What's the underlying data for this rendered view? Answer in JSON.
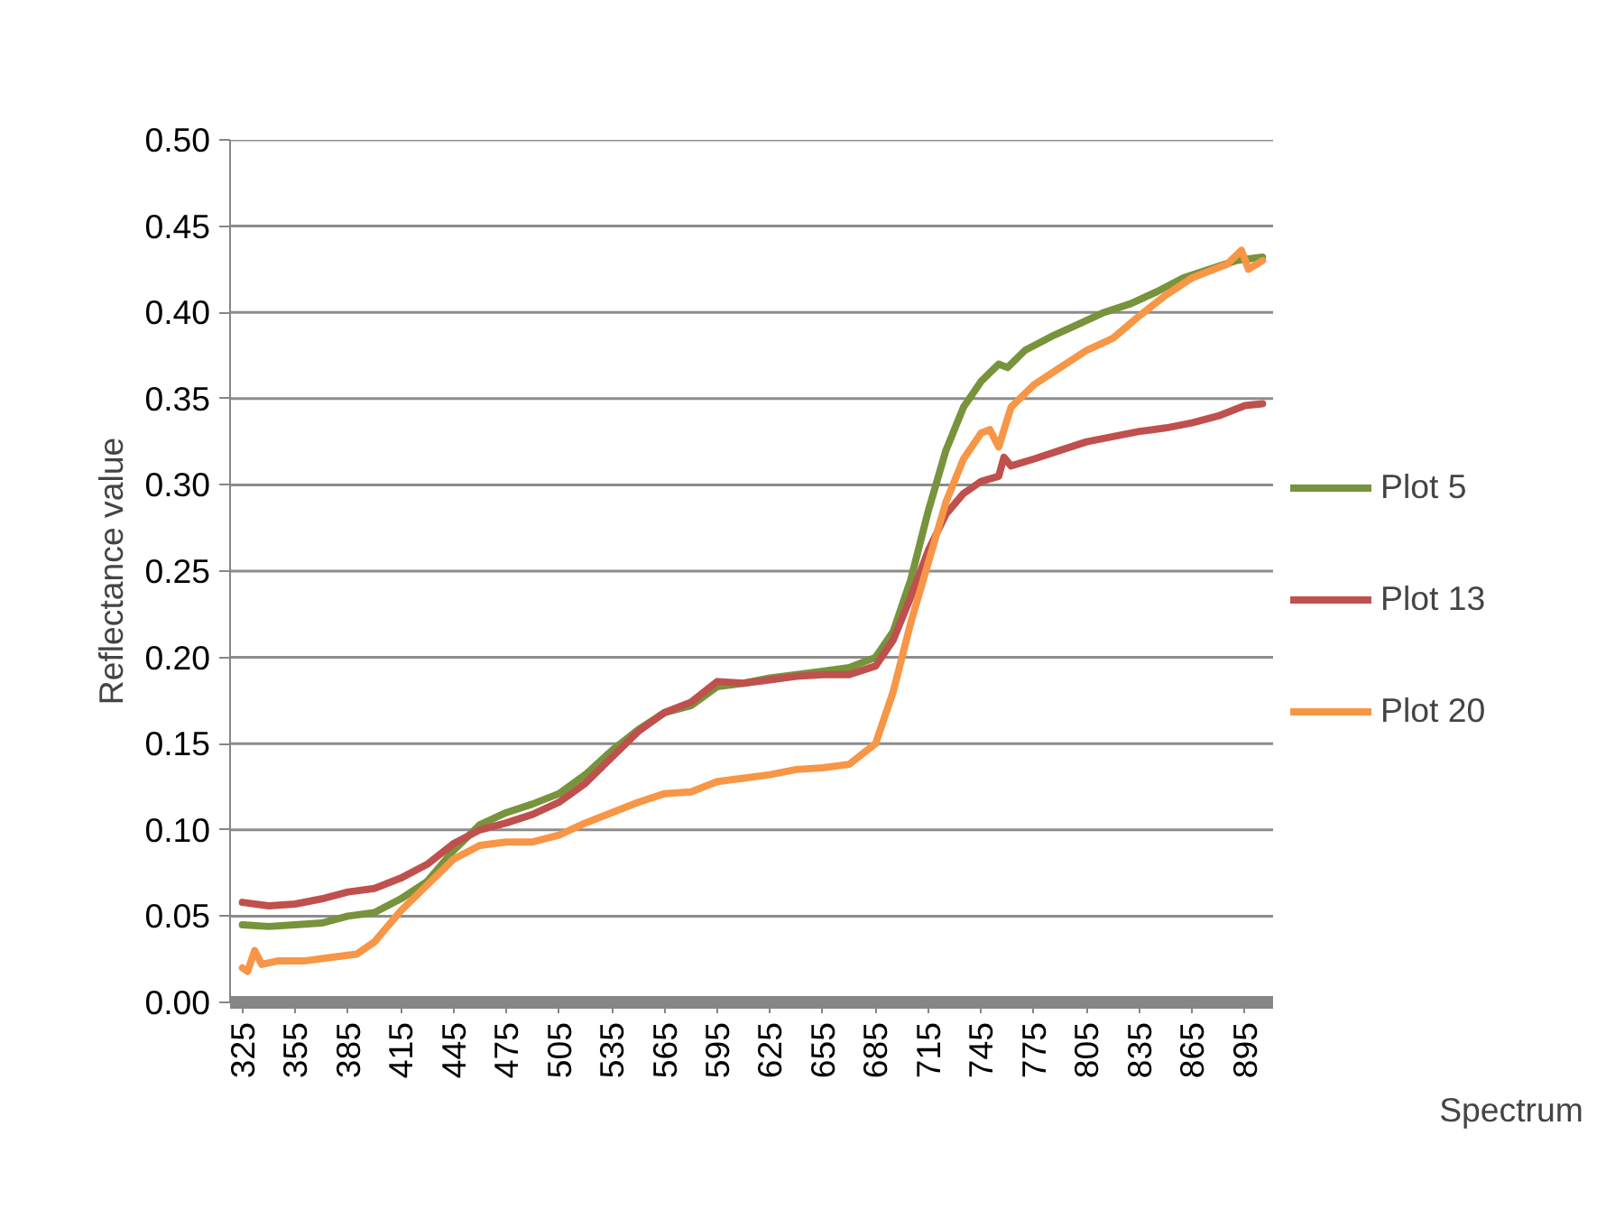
{
  "chart_data": {
    "type": "line",
    "xlabel": "Spectrum",
    "ylabel": "Reflectance value",
    "xlim": [
      318,
      911
    ],
    "xticks": [
      325,
      355,
      385,
      415,
      445,
      475,
      505,
      535,
      565,
      595,
      625,
      655,
      685,
      715,
      745,
      775,
      805,
      835,
      865,
      895
    ],
    "ylim": [
      0,
      0.5
    ],
    "yticks": [
      {
        "value": 0,
        "label": "0.00"
      },
      {
        "value": 0.05,
        "label": "0.05"
      },
      {
        "value": 0.1,
        "label": "0.10"
      },
      {
        "value": 0.15,
        "label": "0.15"
      },
      {
        "value": 0.2,
        "label": "0.20"
      },
      {
        "value": 0.25,
        "label": "0.25"
      },
      {
        "value": 0.3,
        "label": "0.30"
      },
      {
        "value": 0.35,
        "label": "0.35"
      },
      {
        "value": 0.4,
        "label": "0.40"
      },
      {
        "value": 0.45,
        "label": "0.45"
      },
      {
        "value": 0.5,
        "label": "0.50"
      }
    ],
    "grid": "y",
    "legend": "right",
    "marker": "none",
    "line_style": "solid",
    "series": [
      {
        "name": "Plot 5",
        "color": "#77933c",
        "x": [
          325,
          340,
          355,
          370,
          385,
          400,
          415,
          430,
          445,
          460,
          475,
          490,
          505,
          520,
          535,
          550,
          565,
          580,
          595,
          610,
          625,
          640,
          655,
          670,
          685,
          695,
          705,
          715,
          725,
          735,
          745,
          755,
          760,
          770,
          785,
          800,
          815,
          830,
          845,
          860,
          875,
          890,
          905
        ],
        "values": [
          0.045,
          0.044,
          0.045,
          0.046,
          0.05,
          0.052,
          0.06,
          0.07,
          0.088,
          0.103,
          0.11,
          0.115,
          0.121,
          0.132,
          0.146,
          0.158,
          0.168,
          0.172,
          0.183,
          0.185,
          0.188,
          0.19,
          0.192,
          0.194,
          0.2,
          0.215,
          0.245,
          0.285,
          0.32,
          0.345,
          0.36,
          0.37,
          0.368,
          0.378,
          0.386,
          0.393,
          0.4,
          0.405,
          0.412,
          0.42,
          0.425,
          0.43,
          0.432
        ]
      },
      {
        "name": "Plot 13",
        "color": "#c0504d",
        "x": [
          325,
          340,
          355,
          370,
          385,
          400,
          415,
          430,
          445,
          460,
          475,
          490,
          505,
          520,
          535,
          550,
          565,
          580,
          595,
          610,
          625,
          640,
          655,
          670,
          685,
          695,
          705,
          715,
          725,
          735,
          745,
          755,
          758,
          762,
          775,
          790,
          805,
          820,
          835,
          850,
          865,
          880,
          895,
          905
        ],
        "values": [
          0.058,
          0.056,
          0.057,
          0.06,
          0.064,
          0.066,
          0.072,
          0.08,
          0.092,
          0.1,
          0.104,
          0.109,
          0.116,
          0.127,
          0.142,
          0.157,
          0.168,
          0.174,
          0.186,
          0.185,
          0.187,
          0.189,
          0.19,
          0.19,
          0.195,
          0.21,
          0.235,
          0.262,
          0.283,
          0.295,
          0.302,
          0.305,
          0.316,
          0.311,
          0.315,
          0.32,
          0.325,
          0.328,
          0.331,
          0.333,
          0.336,
          0.34,
          0.346,
          0.347
        ]
      },
      {
        "name": "Plot 20",
        "color": "#f79646",
        "x": [
          325,
          328,
          332,
          336,
          345,
          360,
          375,
          390,
          400,
          415,
          430,
          445,
          460,
          475,
          490,
          505,
          520,
          535,
          550,
          565,
          580,
          595,
          610,
          625,
          640,
          655,
          670,
          685,
          695,
          705,
          715,
          725,
          735,
          745,
          750,
          755,
          762,
          775,
          790,
          805,
          820,
          835,
          850,
          865,
          875,
          885,
          893,
          897,
          905
        ],
        "values": [
          0.02,
          0.018,
          0.03,
          0.022,
          0.024,
          0.024,
          0.026,
          0.028,
          0.035,
          0.053,
          0.068,
          0.083,
          0.091,
          0.093,
          0.093,
          0.097,
          0.104,
          0.11,
          0.116,
          0.121,
          0.122,
          0.128,
          0.13,
          0.132,
          0.135,
          0.136,
          0.138,
          0.15,
          0.18,
          0.22,
          0.255,
          0.29,
          0.315,
          0.33,
          0.332,
          0.322,
          0.345,
          0.358,
          0.368,
          0.378,
          0.385,
          0.398,
          0.41,
          0.42,
          0.424,
          0.428,
          0.436,
          0.425,
          0.43
        ]
      }
    ]
  }
}
